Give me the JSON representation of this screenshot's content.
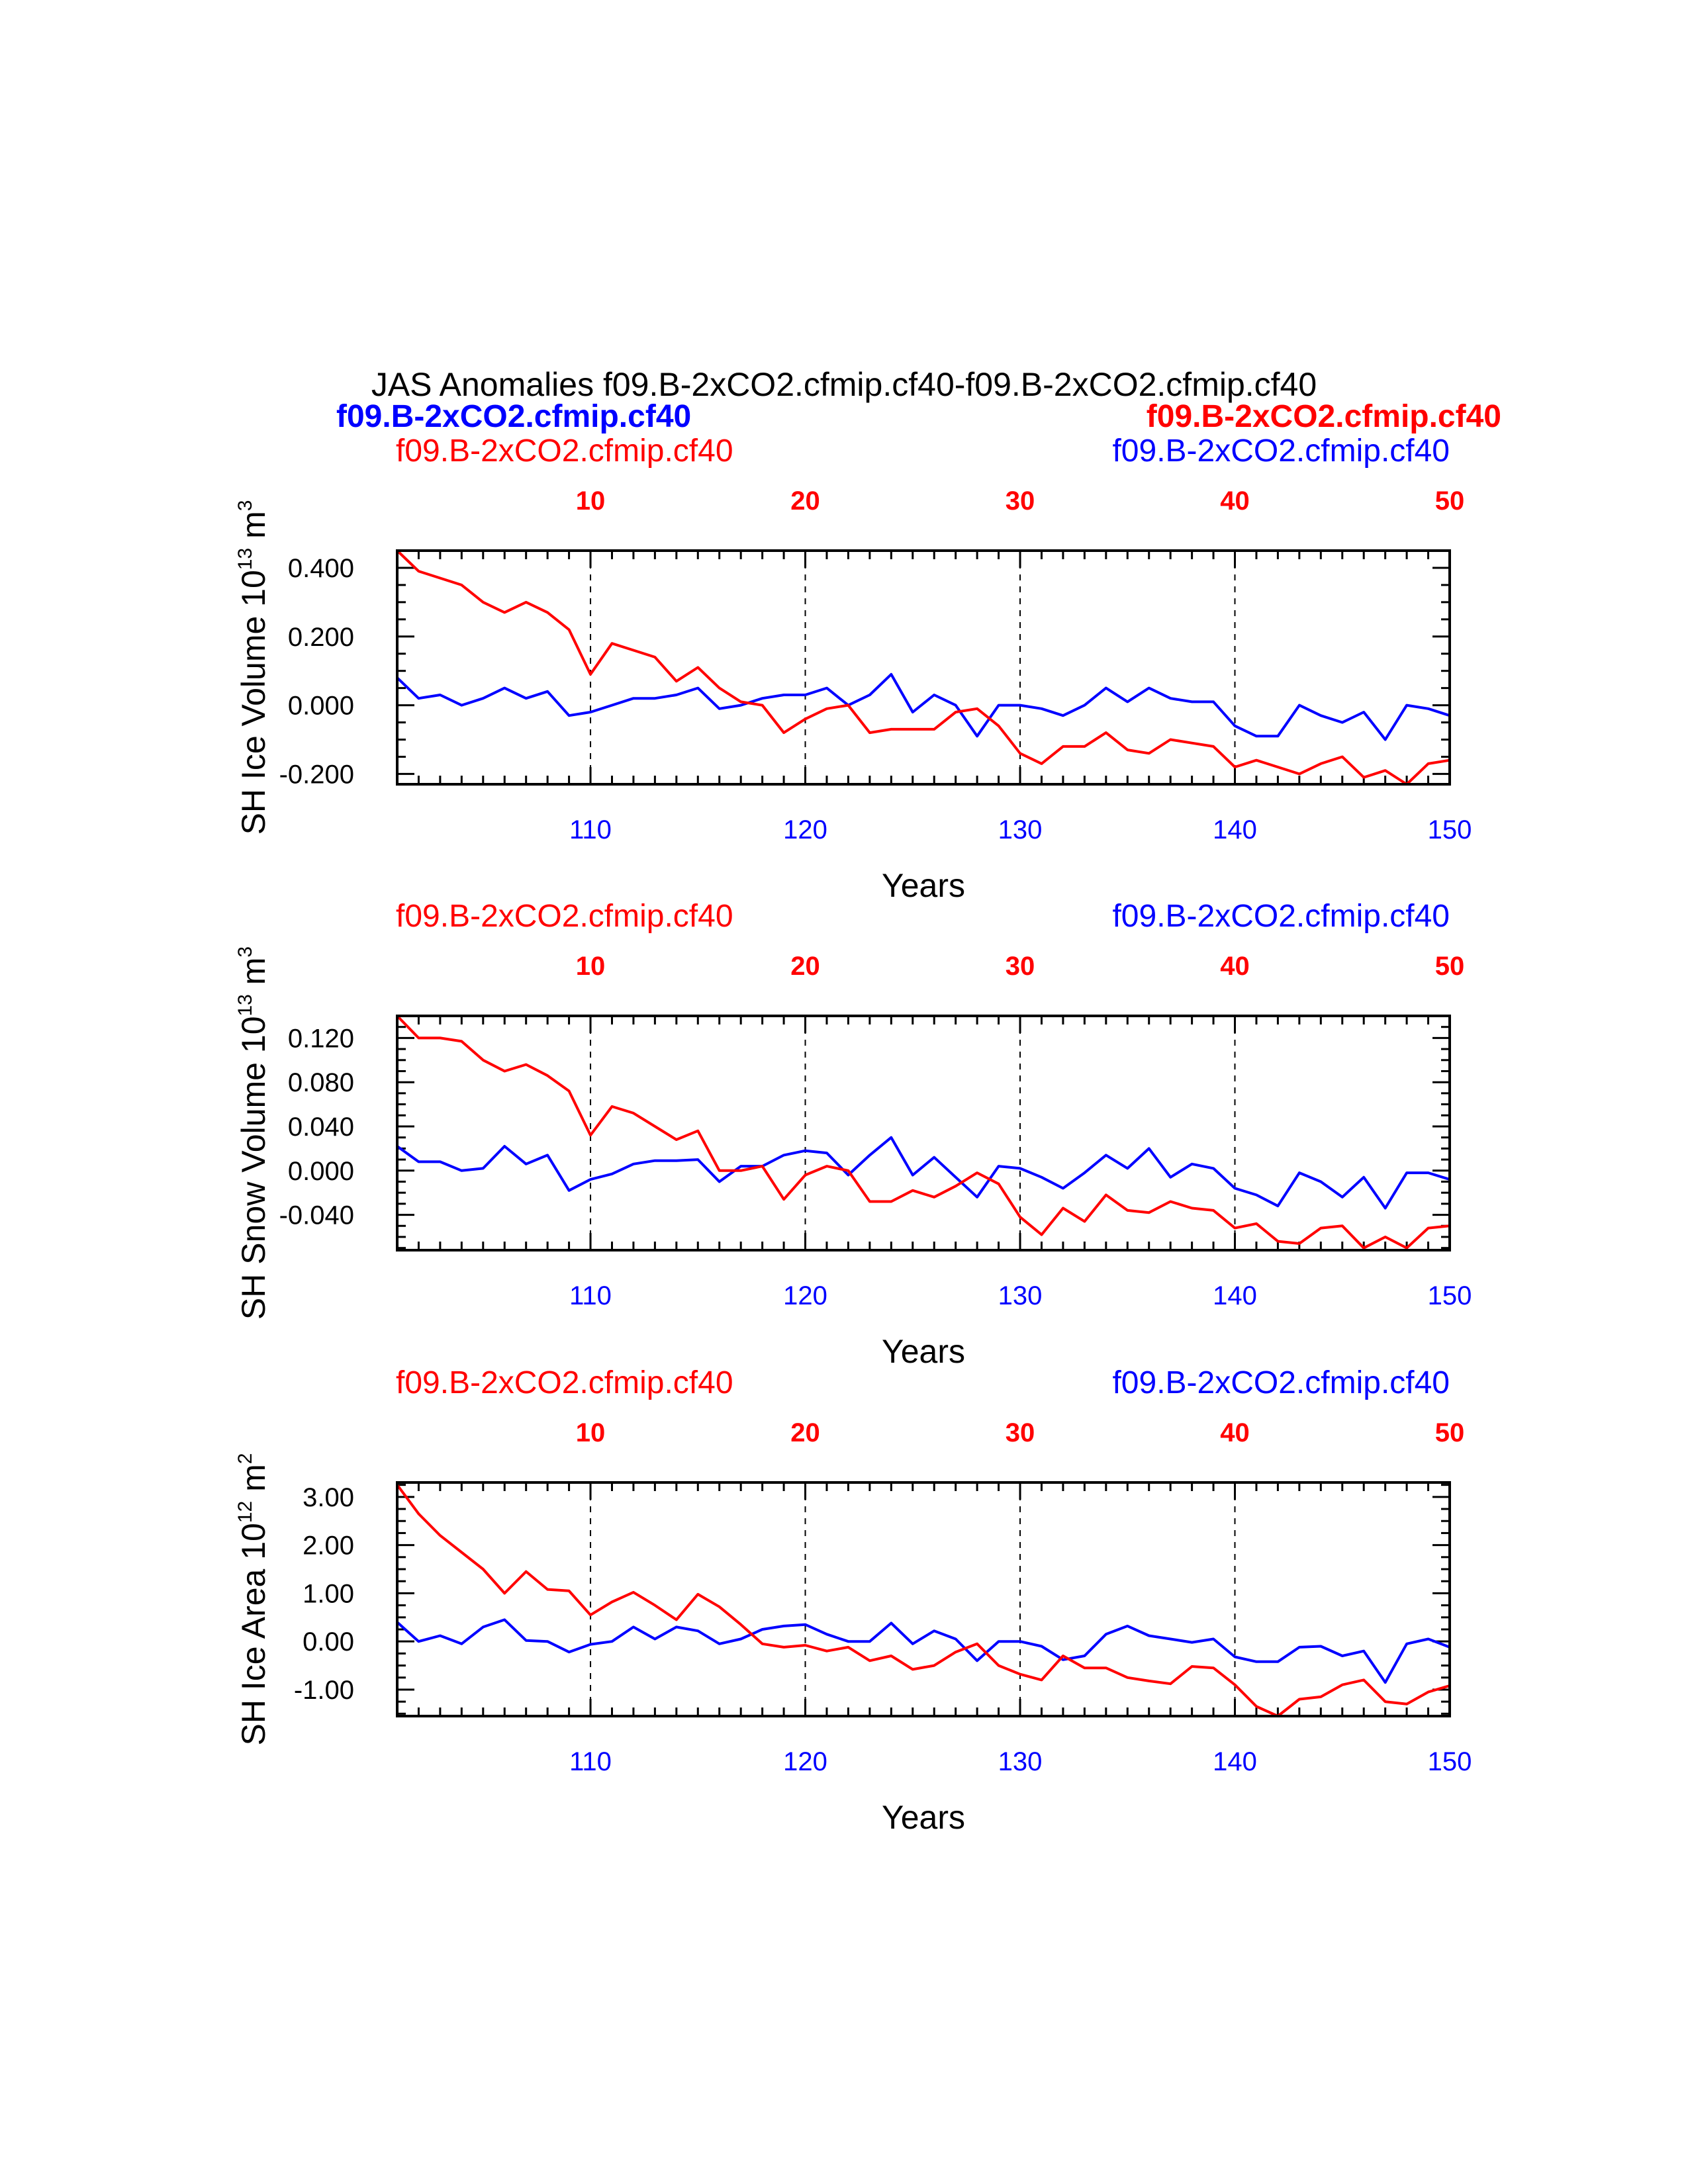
{
  "title": "JAS Anomalies f09.B-2xCO2.cfmip.cf40-f09.B-2xCO2.cfmip.cf40",
  "header_left_bold": "f09.B-2xCO2.cfmip.cf40",
  "header_right_bold": "f09.B-2xCO2.cfmip.cf40",
  "colors": {
    "series_1": "#0000ff",
    "series_2": "#ff0000",
    "axes": "#000000"
  },
  "chart_data": [
    {
      "type": "line",
      "ylabel": "SH Ice Volume 10",
      "ylabel_sup": "13",
      "ylabel_unit": " m",
      "ylabel_unit_sup": "3",
      "xlabel": "Years",
      "left_run_label": "f09.B-2xCO2.cfmip.cf40",
      "right_run_label": "f09.B-2xCO2.cfmip.cf40",
      "ylim": [
        -0.23,
        0.45
      ],
      "yticks": [
        0.4,
        0.2,
        0.0,
        -0.2
      ],
      "ytick_labels": [
        "0.400",
        "0.200",
        "0.000",
        "-0.200"
      ],
      "xlim_bottom": [
        101,
        150
      ],
      "xticks_bottom": [
        110,
        120,
        130,
        140,
        150
      ],
      "xticks_bottom_labels": [
        "110",
        "120",
        "130",
        "140",
        "150"
      ],
      "xticks_top": [
        10,
        20,
        30,
        40,
        50
      ],
      "xticks_top_labels": [
        "10",
        "20",
        "30",
        "40",
        "50"
      ],
      "grid": "dashed vertical lines at 10, 20, 30, 40",
      "x": [
        101,
        102,
        103,
        104,
        105,
        106,
        107,
        108,
        109,
        110,
        111,
        112,
        113,
        114,
        115,
        116,
        117,
        118,
        119,
        120,
        121,
        122,
        123,
        124,
        125,
        126,
        127,
        128,
        129,
        130,
        131,
        132,
        133,
        134,
        135,
        136,
        137,
        138,
        139,
        140,
        141,
        142,
        143,
        144,
        145,
        146,
        147,
        148,
        149,
        150
      ],
      "series": [
        {
          "color": "#0000ff",
          "values": [
            0.08,
            0.02,
            0.03,
            0.0,
            0.02,
            0.05,
            0.02,
            0.04,
            -0.03,
            -0.02,
            0.0,
            0.02,
            0.02,
            0.03,
            0.05,
            -0.01,
            0.0,
            0.02,
            0.03,
            0.03,
            0.05,
            0.0,
            0.03,
            0.09,
            -0.02,
            0.03,
            0.0,
            -0.09,
            0.0,
            0.0,
            -0.01,
            -0.03,
            0.0,
            0.05,
            0.01,
            0.05,
            0.02,
            0.01,
            0.01,
            -0.06,
            -0.09,
            -0.09,
            0.0,
            -0.03,
            -0.05,
            -0.02,
            -0.1,
            0.0,
            -0.01,
            -0.03
          ]
        },
        {
          "color": "#ff0000",
          "values": [
            0.45,
            0.39,
            0.37,
            0.35,
            0.3,
            0.27,
            0.3,
            0.27,
            0.22,
            0.09,
            0.18,
            0.16,
            0.14,
            0.07,
            0.11,
            0.05,
            0.01,
            0.0,
            -0.08,
            -0.04,
            -0.01,
            0.0,
            -0.08,
            -0.07,
            -0.07,
            -0.07,
            -0.02,
            -0.01,
            -0.06,
            -0.14,
            -0.17,
            -0.12,
            -0.12,
            -0.08,
            -0.13,
            -0.14,
            -0.1,
            -0.11,
            -0.12,
            -0.18,
            -0.16,
            -0.18,
            -0.2,
            -0.17,
            -0.15,
            -0.21,
            -0.19,
            -0.23,
            -0.17,
            -0.16
          ]
        }
      ]
    },
    {
      "type": "line",
      "ylabel": "SH Snow Volume 10",
      "ylabel_sup": "13",
      "ylabel_unit": " m",
      "ylabel_unit_sup": "3",
      "xlabel": "Years",
      "left_run_label": "f09.B-2xCO2.cfmip.cf40",
      "right_run_label": "f09.B-2xCO2.cfmip.cf40",
      "ylim": [
        -0.072,
        0.14
      ],
      "yticks": [
        0.12,
        0.08,
        0.04,
        0.0,
        -0.04
      ],
      "ytick_labels": [
        "0.120",
        "0.080",
        "0.040",
        "0.000",
        "-0.040"
      ],
      "xlim_bottom": [
        101,
        150
      ],
      "xticks_bottom": [
        110,
        120,
        130,
        140,
        150
      ],
      "xticks_bottom_labels": [
        "110",
        "120",
        "130",
        "140",
        "150"
      ],
      "xticks_top": [
        10,
        20,
        30,
        40,
        50
      ],
      "xticks_top_labels": [
        "10",
        "20",
        "30",
        "40",
        "50"
      ],
      "grid": "dashed vertical lines at 10, 20, 30, 40",
      "x": [
        101,
        102,
        103,
        104,
        105,
        106,
        107,
        108,
        109,
        110,
        111,
        112,
        113,
        114,
        115,
        116,
        117,
        118,
        119,
        120,
        121,
        122,
        123,
        124,
        125,
        126,
        127,
        128,
        129,
        130,
        131,
        132,
        133,
        134,
        135,
        136,
        137,
        138,
        139,
        140,
        141,
        142,
        143,
        144,
        145,
        146,
        147,
        148,
        149,
        150
      ],
      "series": [
        {
          "color": "#0000ff",
          "values": [
            0.022,
            0.008,
            0.008,
            0.0,
            0.002,
            0.022,
            0.006,
            0.014,
            -0.018,
            -0.008,
            -0.003,
            0.006,
            0.009,
            0.009,
            0.01,
            -0.01,
            0.004,
            0.004,
            0.014,
            0.018,
            0.016,
            -0.004,
            0.014,
            0.03,
            -0.004,
            0.012,
            -0.006,
            -0.024,
            0.004,
            0.002,
            -0.006,
            -0.016,
            -0.002,
            0.014,
            0.002,
            0.02,
            -0.006,
            0.006,
            0.002,
            -0.016,
            -0.022,
            -0.032,
            -0.002,
            -0.01,
            -0.024,
            -0.006,
            -0.034,
            -0.002,
            -0.002,
            -0.008
          ]
        },
        {
          "color": "#ff0000",
          "values": [
            0.14,
            0.12,
            0.12,
            0.117,
            0.1,
            0.09,
            0.096,
            0.086,
            0.072,
            0.032,
            0.058,
            0.052,
            0.04,
            0.028,
            0.036,
            0.0,
            0.0,
            0.004,
            -0.026,
            -0.004,
            0.004,
            0.0,
            -0.028,
            -0.028,
            -0.018,
            -0.024,
            -0.014,
            -0.002,
            -0.012,
            -0.042,
            -0.058,
            -0.034,
            -0.046,
            -0.022,
            -0.036,
            -0.038,
            -0.028,
            -0.034,
            -0.036,
            -0.052,
            -0.048,
            -0.064,
            -0.066,
            -0.052,
            -0.05,
            -0.07,
            -0.06,
            -0.07,
            -0.052,
            -0.05
          ]
        }
      ]
    },
    {
      "type": "line",
      "ylabel": "SH Ice Area 10",
      "ylabel_sup": "12",
      "ylabel_unit": " m",
      "ylabel_unit_sup": "2",
      "xlabel": "Years",
      "left_run_label": "f09.B-2xCO2.cfmip.cf40",
      "right_run_label": "f09.B-2xCO2.cfmip.cf40",
      "ylim": [
        -1.55,
        3.3
      ],
      "yticks": [
        3.0,
        2.0,
        1.0,
        0.0,
        -1.0
      ],
      "ytick_labels": [
        "3.00",
        "2.00",
        "1.00",
        "0.00",
        "-1.00"
      ],
      "xlim_bottom": [
        101,
        150
      ],
      "xticks_bottom": [
        110,
        120,
        130,
        140,
        150
      ],
      "xticks_bottom_labels": [
        "110",
        "120",
        "130",
        "140",
        "150"
      ],
      "xticks_top": [
        10,
        20,
        30,
        40,
        50
      ],
      "xticks_top_labels": [
        "10",
        "20",
        "30",
        "40",
        "50"
      ],
      "grid": "dashed vertical lines at 10, 20, 30, 40",
      "x": [
        101,
        102,
        103,
        104,
        105,
        106,
        107,
        108,
        109,
        110,
        111,
        112,
        113,
        114,
        115,
        116,
        117,
        118,
        119,
        120,
        121,
        122,
        123,
        124,
        125,
        126,
        127,
        128,
        129,
        130,
        131,
        132,
        133,
        134,
        135,
        136,
        137,
        138,
        139,
        140,
        141,
        142,
        143,
        144,
        145,
        146,
        147,
        148,
        149,
        150
      ],
      "series": [
        {
          "color": "#0000ff",
          "values": [
            0.4,
            0.0,
            0.12,
            -0.05,
            0.3,
            0.45,
            0.02,
            0.0,
            -0.22,
            -0.06,
            0.0,
            0.3,
            0.05,
            0.3,
            0.22,
            -0.05,
            0.05,
            0.25,
            0.32,
            0.35,
            0.15,
            0.0,
            0.0,
            0.38,
            -0.05,
            0.22,
            0.05,
            -0.4,
            0.0,
            0.0,
            -0.1,
            -0.38,
            -0.3,
            0.15,
            0.32,
            0.12,
            0.05,
            -0.02,
            0.05,
            -0.32,
            -0.42,
            -0.42,
            -0.12,
            -0.1,
            -0.3,
            -0.2,
            -0.85,
            -0.05,
            0.05,
            -0.12
          ]
        },
        {
          "color": "#ff0000",
          "values": [
            3.25,
            2.65,
            2.2,
            1.85,
            1.5,
            1.0,
            1.45,
            1.08,
            1.05,
            0.55,
            0.82,
            1.02,
            0.75,
            0.45,
            0.98,
            0.72,
            0.35,
            -0.05,
            -0.12,
            -0.08,
            -0.2,
            -0.12,
            -0.4,
            -0.3,
            -0.58,
            -0.5,
            -0.22,
            -0.05,
            -0.5,
            -0.68,
            -0.8,
            -0.3,
            -0.55,
            -0.55,
            -0.75,
            -0.82,
            -0.88,
            -0.52,
            -0.55,
            -0.9,
            -1.35,
            -1.55,
            -1.2,
            -1.15,
            -0.9,
            -0.8,
            -1.25,
            -1.3,
            -1.05,
            -0.92
          ]
        }
      ]
    }
  ]
}
